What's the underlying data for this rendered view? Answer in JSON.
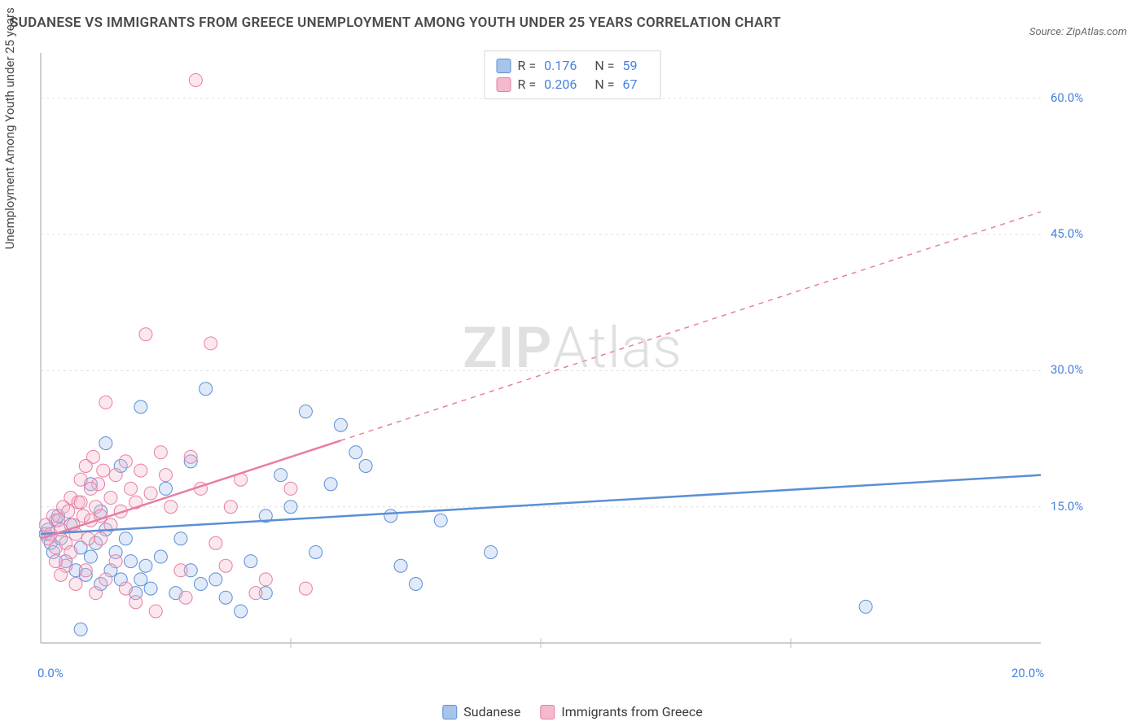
{
  "title": "SUDANESE VS IMMIGRANTS FROM GREECE UNEMPLOYMENT AMONG YOUTH UNDER 25 YEARS CORRELATION CHART",
  "source": "Source: ZipAtlas.com",
  "ylabel": "Unemployment Among Youth under 25 years",
  "watermark": {
    "bold": "ZIP",
    "light": "Atlas"
  },
  "chart": {
    "type": "scatter",
    "background_color": "#ffffff",
    "grid_color": "#e0e0e0",
    "axis_color": "#bfbfbf",
    "xlim": [
      0,
      20
    ],
    "ylim": [
      0,
      65
    ],
    "xticks": [
      0,
      20
    ],
    "xtick_labels": [
      "0.0%",
      "20.0%"
    ],
    "yticks": [
      15,
      30,
      45,
      60
    ],
    "ytick_labels": [
      "15.0%",
      "30.0%",
      "45.0%",
      "60.0%"
    ],
    "marker_radius": 8,
    "marker_stroke_width": 1,
    "marker_fill_opacity": 0.35,
    "series": [
      {
        "name": "Sudanese",
        "color": "#5b8fd6",
        "fill": "#a8c4ea",
        "r": 0.176,
        "n": 59,
        "trend": {
          "x1": 0,
          "y1": 12.0,
          "x2": 20,
          "y2": 18.5,
          "solid_until_x": 20
        },
        "points": [
          [
            0.1,
            12.0
          ],
          [
            0.2,
            11.0
          ],
          [
            0.3,
            13.5
          ],
          [
            0.25,
            10.0
          ],
          [
            0.15,
            12.5
          ],
          [
            0.35,
            14.0
          ],
          [
            0.4,
            11.5
          ],
          [
            0.5,
            9.0
          ],
          [
            0.6,
            13.0
          ],
          [
            0.7,
            8.0
          ],
          [
            0.8,
            10.5
          ],
          [
            0.9,
            7.5
          ],
          [
            1.0,
            9.5
          ],
          [
            1.1,
            11.0
          ],
          [
            1.2,
            6.5
          ],
          [
            1.3,
            12.5
          ],
          [
            1.4,
            8.0
          ],
          [
            1.5,
            10.0
          ],
          [
            1.6,
            7.0
          ],
          [
            1.7,
            11.5
          ],
          [
            1.8,
            9.0
          ],
          [
            1.9,
            5.5
          ],
          [
            2.0,
            7.0
          ],
          [
            2.1,
            8.5
          ],
          [
            2.2,
            6.0
          ],
          [
            2.4,
            9.5
          ],
          [
            2.5,
            17.0
          ],
          [
            2.7,
            5.5
          ],
          [
            2.8,
            11.5
          ],
          [
            3.0,
            8.0
          ],
          [
            3.2,
            6.5
          ],
          [
            3.3,
            28.0
          ],
          [
            3.5,
            7.0
          ],
          [
            3.7,
            5.0
          ],
          [
            4.0,
            3.5
          ],
          [
            4.2,
            9.0
          ],
          [
            4.5,
            14.0
          ],
          [
            4.8,
            18.5
          ],
          [
            5.0,
            15.0
          ],
          [
            5.3,
            25.5
          ],
          [
            5.5,
            10.0
          ],
          [
            5.8,
            17.5
          ],
          [
            6.0,
            24.0
          ],
          [
            6.3,
            21.0
          ],
          [
            6.5,
            19.5
          ],
          [
            7.0,
            14.0
          ],
          [
            7.2,
            8.5
          ],
          [
            7.5,
            6.5
          ],
          [
            8.0,
            13.5
          ],
          [
            9.0,
            10.0
          ],
          [
            16.5,
            4.0
          ],
          [
            1.0,
            17.5
          ],
          [
            1.3,
            22.0
          ],
          [
            2.0,
            26.0
          ],
          [
            1.6,
            19.5
          ],
          [
            3.0,
            20.0
          ],
          [
            4.5,
            5.5
          ],
          [
            1.2,
            14.5
          ],
          [
            0.8,
            1.5
          ]
        ]
      },
      {
        "name": "Immigrants from Greece",
        "color": "#e87ea3",
        "fill": "#f4b9cd",
        "r": 0.206,
        "n": 67,
        "trend": {
          "x1": 0,
          "y1": 11.5,
          "x2": 20,
          "y2": 47.5,
          "solid_until_x": 6.0
        },
        "points": [
          [
            0.1,
            13.0
          ],
          [
            0.15,
            11.5
          ],
          [
            0.2,
            12.0
          ],
          [
            0.25,
            14.0
          ],
          [
            0.3,
            10.5
          ],
          [
            0.35,
            13.5
          ],
          [
            0.4,
            12.5
          ],
          [
            0.45,
            15.0
          ],
          [
            0.5,
            11.0
          ],
          [
            0.55,
            14.5
          ],
          [
            0.6,
            16.0
          ],
          [
            0.65,
            13.0
          ],
          [
            0.7,
            12.0
          ],
          [
            0.75,
            15.5
          ],
          [
            0.8,
            18.0
          ],
          [
            0.85,
            14.0
          ],
          [
            0.9,
            19.5
          ],
          [
            0.95,
            11.5
          ],
          [
            1.0,
            13.5
          ],
          [
            1.05,
            20.5
          ],
          [
            1.1,
            15.0
          ],
          [
            1.15,
            17.5
          ],
          [
            1.2,
            14.0
          ],
          [
            1.25,
            19.0
          ],
          [
            1.3,
            26.5
          ],
          [
            1.4,
            16.0
          ],
          [
            1.5,
            18.5
          ],
          [
            1.6,
            14.5
          ],
          [
            1.7,
            20.0
          ],
          [
            1.8,
            17.0
          ],
          [
            1.9,
            15.5
          ],
          [
            2.0,
            19.0
          ],
          [
            2.1,
            34.0
          ],
          [
            2.2,
            16.5
          ],
          [
            2.3,
            3.5
          ],
          [
            2.4,
            21.0
          ],
          [
            2.5,
            18.5
          ],
          [
            2.6,
            15.0
          ],
          [
            2.8,
            8.0
          ],
          [
            3.0,
            20.5
          ],
          [
            3.2,
            17.0
          ],
          [
            3.4,
            33.0
          ],
          [
            3.5,
            11.0
          ],
          [
            3.7,
            8.5
          ],
          [
            4.0,
            18.0
          ],
          [
            4.3,
            5.5
          ],
          [
            4.5,
            7.0
          ],
          [
            5.0,
            17.0
          ],
          [
            5.3,
            6.0
          ],
          [
            3.1,
            62.0
          ],
          [
            0.5,
            8.5
          ],
          [
            0.7,
            6.5
          ],
          [
            0.9,
            8.0
          ],
          [
            1.1,
            5.5
          ],
          [
            1.3,
            7.0
          ],
          [
            1.5,
            9.0
          ],
          [
            1.7,
            6.0
          ],
          [
            1.9,
            4.5
          ],
          [
            0.3,
            9.0
          ],
          [
            0.4,
            7.5
          ],
          [
            0.6,
            10.0
          ],
          [
            0.8,
            15.5
          ],
          [
            1.0,
            17.0
          ],
          [
            1.2,
            11.5
          ],
          [
            1.4,
            13.0
          ],
          [
            3.8,
            15.0
          ],
          [
            2.9,
            5.0
          ]
        ]
      }
    ]
  },
  "legend_top": {
    "r_label": "R =",
    "n_label": "N ="
  },
  "legend_bottom": [
    {
      "label": "Sudanese",
      "fill": "#a8c4ea",
      "stroke": "#5b8fd6"
    },
    {
      "label": "Immigrants from Greece",
      "fill": "#f4b9cd",
      "stroke": "#e87ea3"
    }
  ]
}
